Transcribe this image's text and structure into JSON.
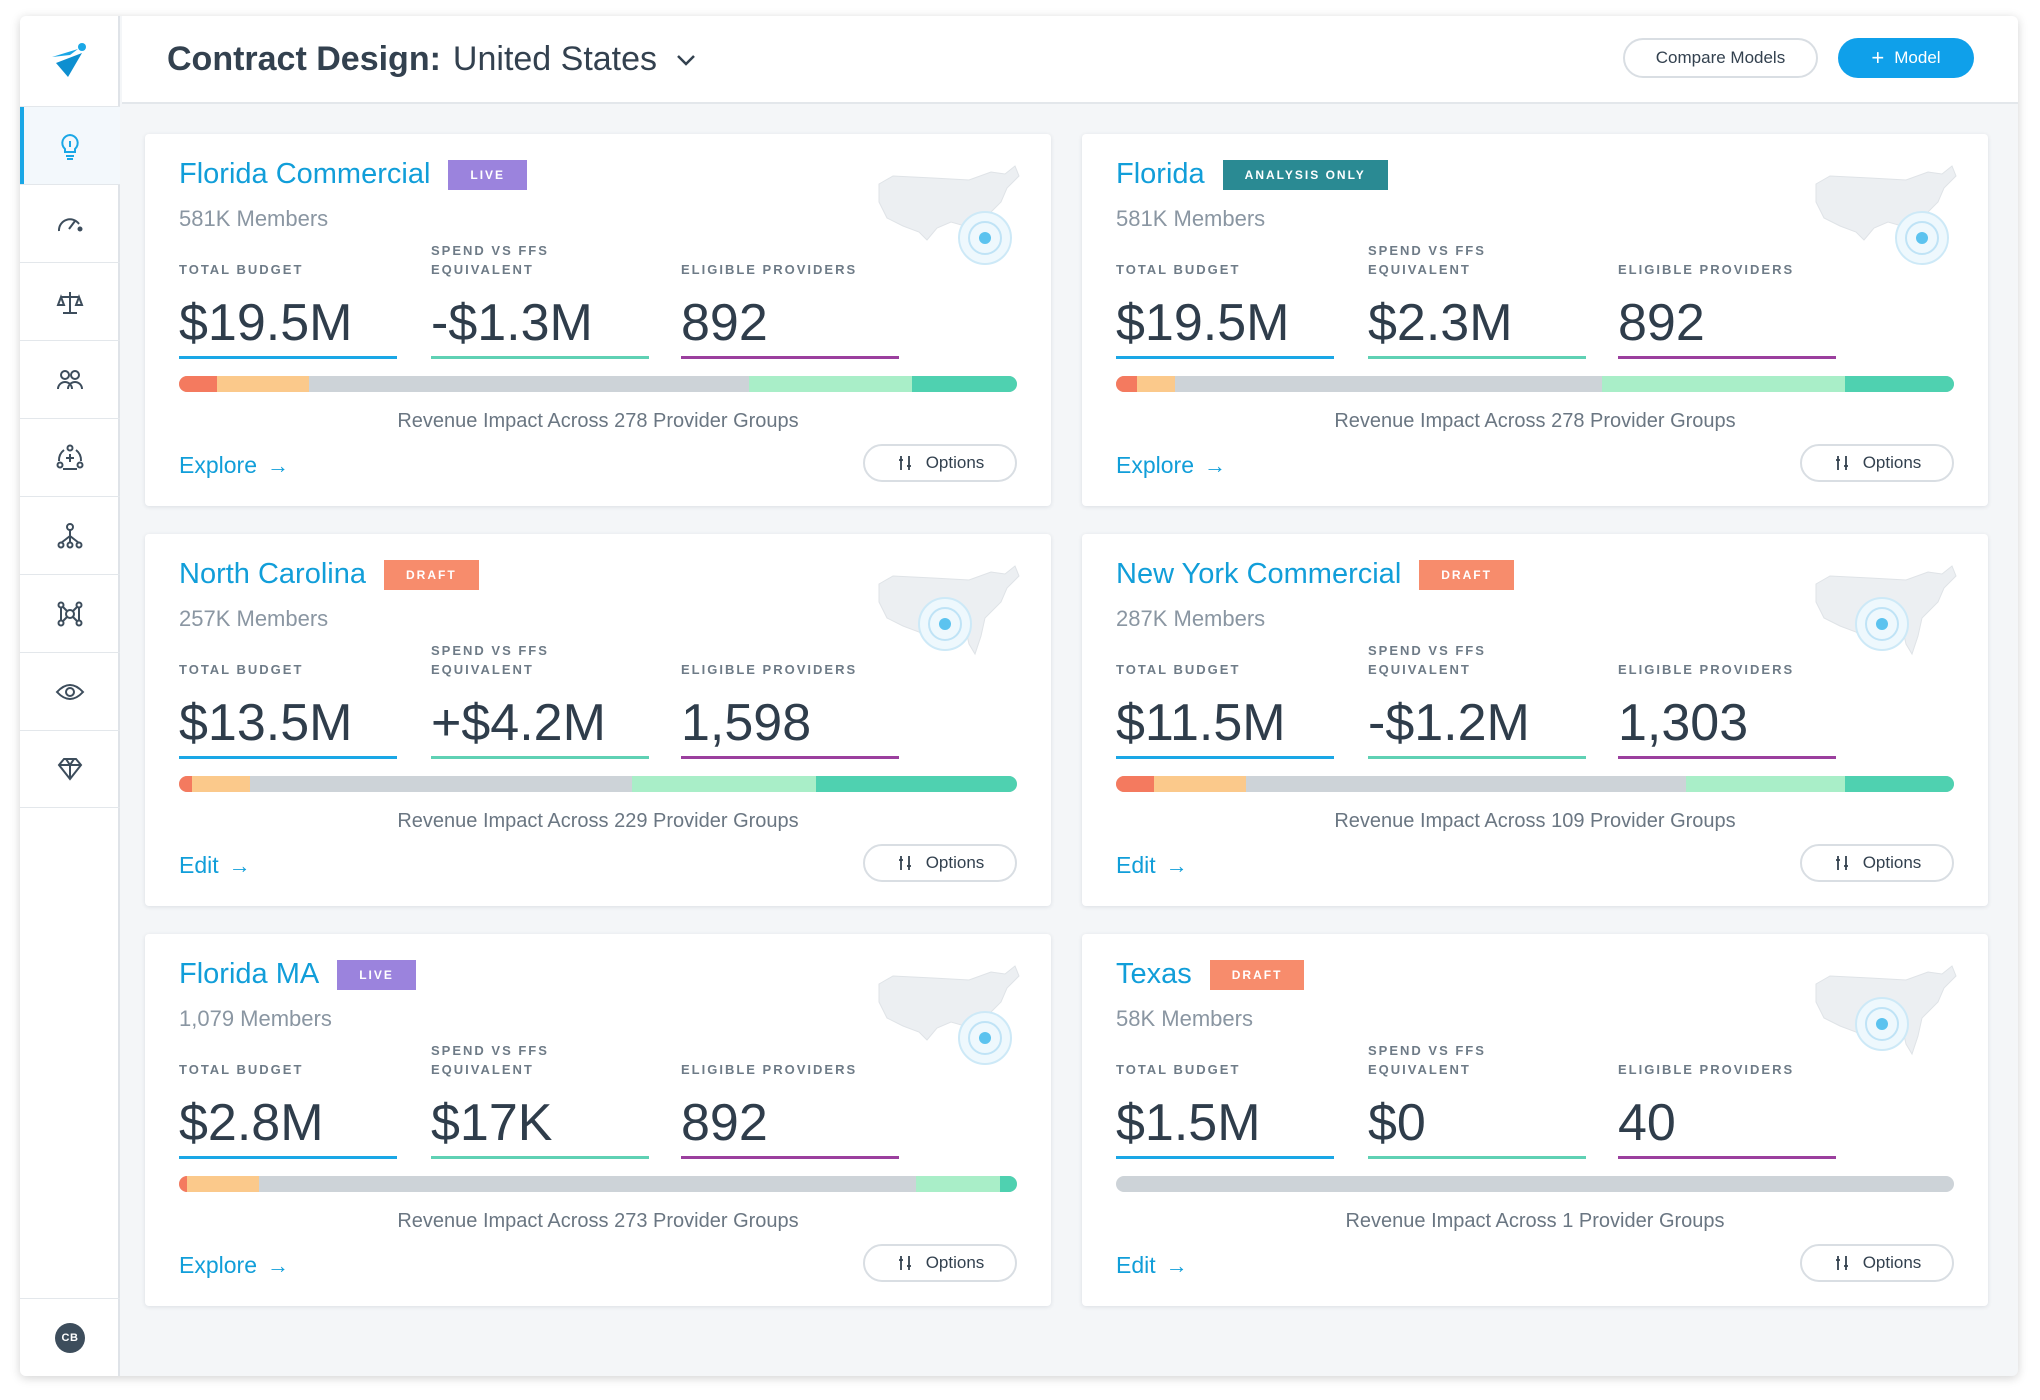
{
  "header": {
    "title_prefix": "Contract Design:",
    "location": "United States",
    "compare_label": "Compare Models",
    "model_label": "Model"
  },
  "sidebar": {
    "items": [
      {
        "icon": "lightbulb-icon",
        "active": true
      },
      {
        "icon": "speedometer-icon",
        "active": false
      },
      {
        "icon": "scales-icon",
        "active": false
      },
      {
        "icon": "people-group-icon",
        "active": false
      },
      {
        "icon": "network-plus-icon",
        "active": false
      },
      {
        "icon": "hierarchy-icon",
        "active": false
      },
      {
        "icon": "nodes-icon",
        "active": false
      },
      {
        "icon": "eye-icon",
        "active": false
      },
      {
        "icon": "diamond-icon",
        "active": false
      }
    ],
    "user_initials": "CB"
  },
  "metric_labels": {
    "total_budget": "TOTAL BUDGET",
    "spend_line1": "SPEND VS FFS",
    "spend_line2": "EQUIVALENT",
    "eligible": "ELIGIBLE PROVIDERS"
  },
  "options_label": "Options",
  "colors": {
    "accent": "#119ed9",
    "live": "#9b83dd",
    "analysis": "#2a8a93",
    "draft": "#f78c6c",
    "budget_line": "#1aa7e6",
    "spend_line": "#5fd1b4",
    "eligible_line": "#9b3f9e",
    "bar_red": "#f47a5f",
    "bar_orange": "#fbc98b",
    "bar_gray": "#cdd3d8",
    "bar_lightgreen": "#a9eec8",
    "bar_teal": "#4fd1b0"
  },
  "cards": [
    {
      "name": "Florida Commercial",
      "status": "LIVE",
      "members": "581K Members",
      "total_budget": "$19.5M",
      "spend": "-$1.3M",
      "eligible": "892",
      "impact": "Revenue Impact Across 278 Provider Groups",
      "link": "Explore",
      "bar": [
        4.5,
        11,
        52.5,
        19.5,
        12.5
      ]
    },
    {
      "name": "Florida",
      "status": "ANALYSIS ONLY",
      "members": "581K Members",
      "total_budget": "$19.5M",
      "spend": "$2.3M",
      "eligible": "892",
      "impact": "Revenue Impact Across 278 Provider Groups",
      "link": "Explore",
      "bar": [
        2.5,
        4.5,
        51,
        29,
        13
      ]
    },
    {
      "name": "North Carolina",
      "status": "DRAFT",
      "members": "257K Members",
      "total_budget": "$13.5M",
      "spend": "+$4.2M",
      "eligible": "1,598",
      "impact": "Revenue Impact Across 229 Provider Groups",
      "link": "Edit",
      "bar": [
        1.5,
        7,
        45.5,
        22,
        24
      ]
    },
    {
      "name": "New York Commercial",
      "status": "DRAFT",
      "members": "287K Members",
      "total_budget": "$11.5M",
      "spend": "-$1.2M",
      "eligible": "1,303",
      "impact": "Revenue Impact Across 109 Provider Groups",
      "link": "Edit",
      "bar": [
        4.5,
        11,
        52.5,
        19,
        13
      ]
    },
    {
      "name": "Florida MA",
      "status": "LIVE",
      "members": "1,079 Members",
      "total_budget": "$2.8M",
      "spend": "$17K",
      "eligible": "892",
      "impact": "Revenue Impact Across 273 Provider Groups",
      "link": "Explore",
      "bar": [
        1,
        8.5,
        78.5,
        10,
        2
      ]
    },
    {
      "name": "Texas",
      "status": "DRAFT",
      "members": "58K Members",
      "total_budget": "$1.5M",
      "spend": "$0",
      "eligible": "40",
      "impact": "Revenue Impact Across 1 Provider Groups",
      "link": "Edit",
      "bar": [
        0,
        0,
        100,
        0,
        0
      ]
    }
  ]
}
